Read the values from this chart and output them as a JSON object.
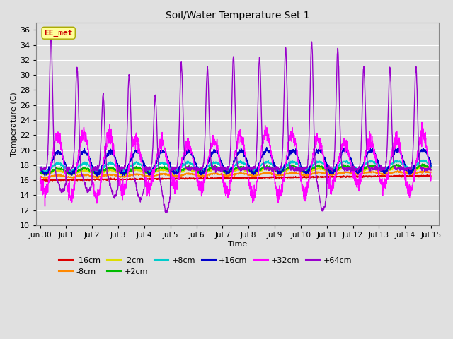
{
  "title": "Soil/Water Temperature Set 1",
  "xlabel": "Time",
  "ylabel": "Temperature (C)",
  "ylim": [
    10,
    37
  ],
  "yticks": [
    10,
    12,
    14,
    16,
    18,
    20,
    22,
    24,
    26,
    28,
    30,
    32,
    34,
    36
  ],
  "background_color": "#e0e0e0",
  "grid_color": "#ffffff",
  "annotation_text": "EE_met",
  "annotation_color": "#cc0000",
  "annotation_bg": "#ffff99",
  "annotation_border": "#aaaa00",
  "colors": {
    "-16cm": "#dd0000",
    "-8cm": "#ff8800",
    "-2cm": "#dddd00",
    "+2cm": "#00bb00",
    "+8cm": "#00cccc",
    "+16cm": "#0000cc",
    "+32cm": "#ff00ff",
    "+64cm": "#9900cc"
  },
  "xtick_labels": [
    "Jun 30",
    "Jul 1",
    "Jul 2",
    "Jul 3",
    "Jul 4",
    "Jul 5",
    "Jul 6",
    "Jul 7",
    "Jul 8",
    "Jul 9",
    "Jul 10",
    "Jul 11",
    "Jul 12",
    "Jul 13",
    "Jul 14",
    "Jul 15"
  ],
  "xtick_positions": [
    0,
    1,
    2,
    3,
    4,
    5,
    6,
    7,
    8,
    9,
    10,
    11,
    12,
    13,
    14,
    15
  ]
}
